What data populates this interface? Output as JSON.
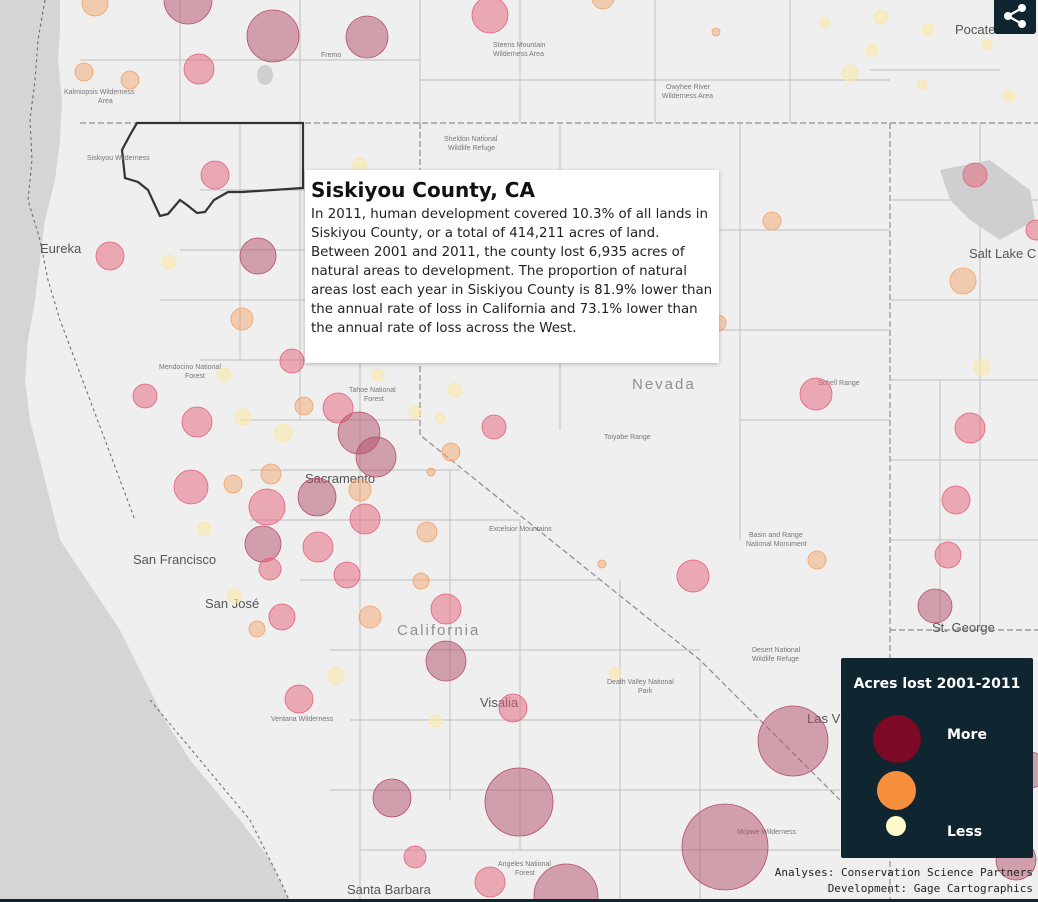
{
  "popup": {
    "title": "Siskiyou County, CA",
    "body": "In 2011, human development covered 10.3% of all lands in Siskiyou County, or a total of 414,211 acres of land. Between 2001 and 2011, the county lost 6,935 acres of natural areas to development. The proportion of natural areas lost each year in Siskiyou County is 81.9% lower than the annual rate of loss in California and 73.1% lower than the annual rate of loss across the West."
  },
  "legend": {
    "title": "Acres lost 2001-2011",
    "more_label": "More",
    "less_label": "Less",
    "colors": {
      "more": "#7a0a25",
      "mid": "#f88f3c",
      "less": "#fdfbcc"
    }
  },
  "credits": {
    "analyses": "Analyses: Conservation Science Partners",
    "development": "Development: Gage Cartographics"
  },
  "share_icon": "share-icon",
  "map_labels": {
    "states": [
      "Nevada",
      "California"
    ],
    "cities": [
      "Eureka",
      "Sacramento",
      "San Francisco",
      "San José",
      "Visalia",
      "Santa Barbara",
      "Salt Lake C",
      "St. George",
      "Las V",
      "Pocate"
    ],
    "areas": [
      "Kalmiopsis Wilderness Area",
      "Siskiyou Wilderness",
      "Sheldon National Wildlife Refuge",
      "Steens Mountain Wilderness Area",
      "Owyhee River Wilderness Area",
      "Mendocino National Forest",
      "Tahoe National Forest",
      "Toiyabe Range",
      "Schell Range",
      "Basin and Range National Monument",
      "Desert National Wildlife Refuge",
      "Death Valley National Park",
      "Ventana Wilderness",
      "Mojave Wilderness",
      "Angeles National Forest",
      "Excelsior Mountains",
      "Fremo"
    ]
  }
}
